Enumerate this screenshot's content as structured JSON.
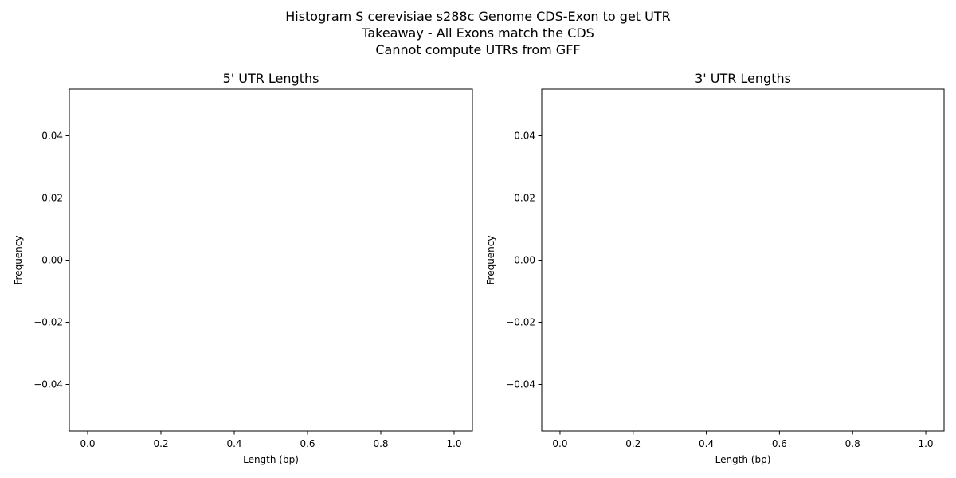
{
  "figure": {
    "title_lines": [
      "Histogram S cerevisiae s288c Genome CDS-Exon to get UTR",
      "Takeaway - All Exons match the CDS",
      "Cannot compute UTRs from GFF"
    ]
  },
  "chart_data": [
    {
      "type": "bar",
      "title": "5' UTR Lengths",
      "xlabel": "Length (bp)",
      "ylabel": "Frequency",
      "xlim": [
        -0.05,
        1.05
      ],
      "ylim": [
        -0.055,
        0.055
      ],
      "xticks": [
        "0.0",
        "0.2",
        "0.4",
        "0.6",
        "0.8",
        "1.0"
      ],
      "yticks": [
        "−0.04",
        "−0.02",
        "0.00",
        "0.02",
        "0.04"
      ],
      "grid": false,
      "bin_edges": [
        0.0,
        1.0
      ],
      "values": [
        0
      ],
      "series_color": "#444444"
    },
    {
      "type": "bar",
      "title": "3' UTR Lengths",
      "xlabel": "Length (bp)",
      "ylabel": "Frequency",
      "xlim": [
        -0.05,
        1.05
      ],
      "ylim": [
        -0.055,
        0.055
      ],
      "xticks": [
        "0.0",
        "0.2",
        "0.4",
        "0.6",
        "0.8",
        "1.0"
      ],
      "yticks": [
        "−0.04",
        "−0.02",
        "0.00",
        "0.02",
        "0.04"
      ],
      "grid": false,
      "bin_edges": [
        0.0,
        1.0
      ],
      "values": [
        0
      ],
      "series_color": "#444444"
    }
  ]
}
